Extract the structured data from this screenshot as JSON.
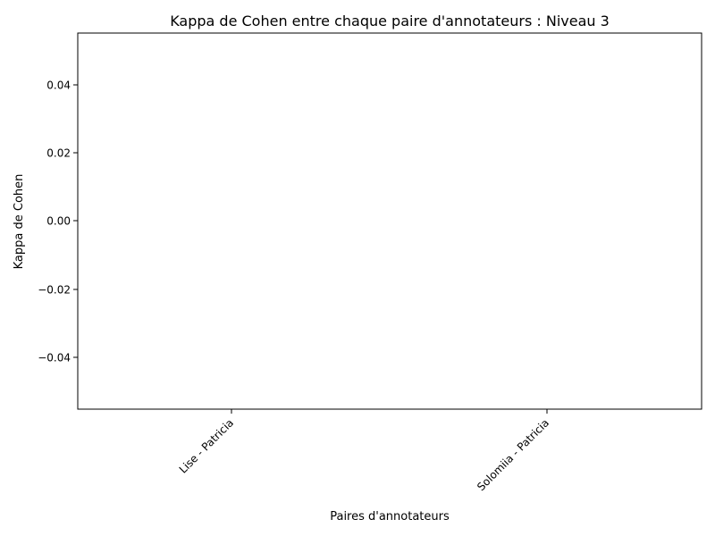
{
  "chart_data": {
    "type": "bar",
    "title": "Kappa de Cohen entre chaque paire d'annotateurs : Niveau 3",
    "xlabel": "Paires d'annotateurs",
    "ylabel": "Kappa de Cohen",
    "categories": [
      "Lise - Patricia",
      "Solomiia - Patricia"
    ],
    "values": [
      0,
      0
    ],
    "ylim": [
      -0.055,
      0.055
    ],
    "yticks": [
      "0.04",
      "0.02",
      "0.00",
      "−0.02",
      "−0.04"
    ],
    "grid": false,
    "legend": "none"
  }
}
